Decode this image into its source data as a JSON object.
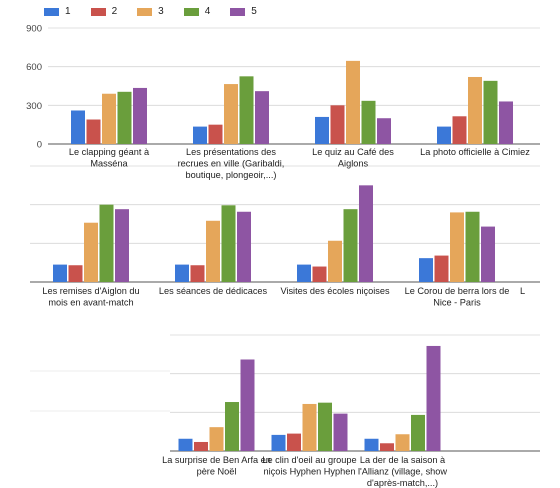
{
  "chart_data": {
    "type": "bar",
    "ylim": [
      0,
      900
    ],
    "yticks": [
      "0",
      "300",
      "600",
      "900"
    ],
    "grid": true,
    "legend": "top-left",
    "series": [
      {
        "name": "1",
        "color": "#3b78d8",
        "values": [
          260,
          135,
          210,
          135,
          135,
          135,
          135,
          185,
          95,
          125,
          95
        ]
      },
      {
        "name": "2",
        "color": "#c9524c",
        "values": [
          190,
          150,
          300,
          215,
          130,
          130,
          120,
          205,
          70,
          135,
          60
        ]
      },
      {
        "name": "3",
        "color": "#e5a65a",
        "values": [
          390,
          465,
          645,
          520,
          460,
          475,
          320,
          540,
          185,
          365,
          130
        ]
      },
      {
        "name": "4",
        "color": "#6a9e3c",
        "values": [
          405,
          525,
          335,
          490,
          600,
          595,
          565,
          545,
          380,
          375,
          280
        ]
      },
      {
        "name": "5",
        "color": "#8e55a3",
        "values": [
          435,
          410,
          200,
          330,
          565,
          545,
          750,
          430,
          710,
          290,
          815
        ]
      }
    ],
    "categories": [
      [
        "Le clapping géant à",
        "Masséna"
      ],
      [
        "Les présentations des",
        "recrues en ville (Garibaldi,",
        "boutique, plongeoir,...)"
      ],
      [
        "Le quiz au Café des",
        "Aiglons"
      ],
      [
        "La photo officielle à Cimiez"
      ],
      [
        "Les remises d'Aiglon du",
        "mois en avant-match"
      ],
      [
        "Les séances de dédicaces"
      ],
      [
        "Visites des écoles niçoises"
      ],
      [
        "Le Corou de berra lors de",
        "Nice - Paris"
      ],
      [
        "La surprise de Ben Arfa en",
        "père Noël"
      ],
      [
        "Le clin d'oeil au groupe",
        "niçois Hyphen Hyphen"
      ],
      [
        "La der de la saison à",
        "l'Allianz (village, show",
        "d'après-match,...)"
      ]
    ],
    "stray_label": "L"
  }
}
